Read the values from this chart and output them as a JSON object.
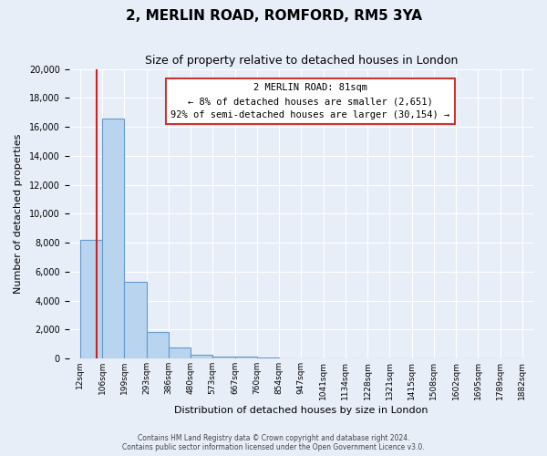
{
  "title": "2, MERLIN ROAD, ROMFORD, RM5 3YA",
  "subtitle": "Size of property relative to detached houses in London",
  "xlabel": "Distribution of detached houses by size in London",
  "ylabel": "Number of detached properties",
  "bar_color": "#b8d4ee",
  "bar_edge_color": "#6699cc",
  "bg_color": "#e8eef8",
  "grid_color": "#ffffff",
  "property_line_color": "#cc2222",
  "annotation_line1": "2 MERLIN ROAD: 81sqm",
  "annotation_line2": "← 8% of detached houses are smaller (2,651)",
  "annotation_line3": "92% of semi-detached houses are larger (30,154) →",
  "property_size": 81,
  "bin_edges": [
    12,
    106,
    199,
    293,
    386,
    480,
    573,
    667,
    760,
    854,
    947,
    1041,
    1134,
    1228,
    1321,
    1415,
    1508,
    1602,
    1695,
    1789,
    1882
  ],
  "bin_labels": [
    "12sqm",
    "106sqm",
    "199sqm",
    "293sqm",
    "386sqm",
    "480sqm",
    "573sqm",
    "667sqm",
    "760sqm",
    "854sqm",
    "947sqm",
    "1041sqm",
    "1134sqm",
    "1228sqm",
    "1321sqm",
    "1415sqm",
    "1508sqm",
    "1602sqm",
    "1695sqm",
    "1789sqm",
    "1882sqm"
  ],
  "bar_heights": [
    8200,
    16600,
    5300,
    1850,
    780,
    280,
    160,
    120,
    100,
    0,
    0,
    0,
    0,
    0,
    0,
    0,
    0,
    0,
    0,
    0
  ],
  "ylim": [
    0,
    20000
  ],
  "yticks": [
    0,
    2000,
    4000,
    6000,
    8000,
    10000,
    12000,
    14000,
    16000,
    18000,
    20000
  ],
  "footer_line1": "Contains HM Land Registry data © Crown copyright and database right 2024.",
  "footer_line2": "Contains public sector information licensed under the Open Government Licence v3.0."
}
